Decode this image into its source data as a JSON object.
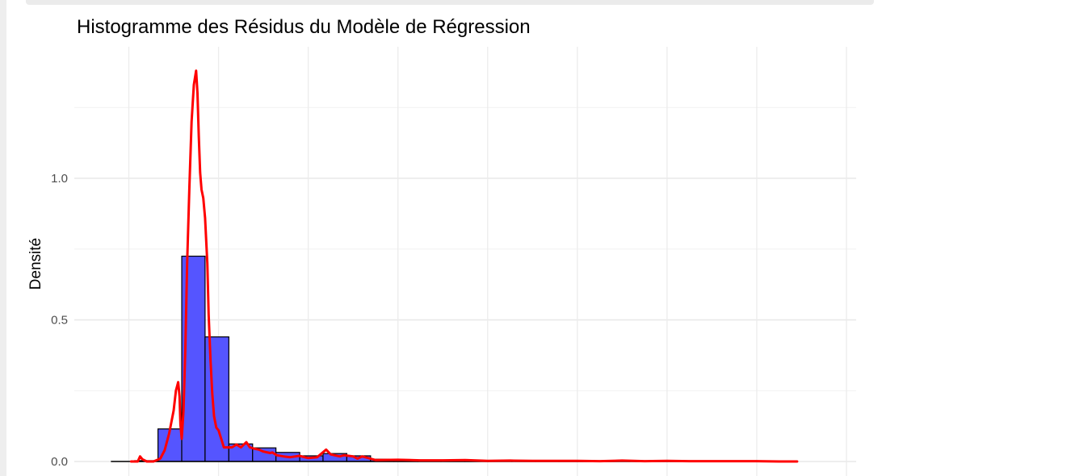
{
  "chart_data": {
    "type": "bar",
    "title": "Histogramme des Résidus du Modèle de Régression",
    "xlabel": "",
    "ylabel": "Densité",
    "ylim": [
      0,
      1.38
    ],
    "xlim": [
      -0.08,
      1.52
    ],
    "grid": true,
    "y_ticks": [
      {
        "value": 0.0,
        "label": "0.0"
      },
      {
        "value": 0.5,
        "label": "0.5"
      },
      {
        "value": 1.0,
        "label": "1.0"
      }
    ],
    "x_gridlines": [
      0.0,
      0.2,
      0.4,
      0.6,
      0.8,
      1.0,
      1.2,
      1.4,
      1.6
    ],
    "histogram": {
      "bin_width": 0.0526,
      "fill_color": "#5555ff",
      "stroke_color": "#000000",
      "bins": [
        {
          "x0": -0.04,
          "x1": 0.013,
          "density": 0.0
        },
        {
          "x0": 0.013,
          "x1": 0.065,
          "density": 0.003
        },
        {
          "x0": 0.065,
          "x1": 0.118,
          "density": 0.115
        },
        {
          "x0": 0.118,
          "x1": 0.17,
          "density": 0.725
        },
        {
          "x0": 0.17,
          "x1": 0.223,
          "density": 0.44
        },
        {
          "x0": 0.223,
          "x1": 0.276,
          "density": 0.062
        },
        {
          "x0": 0.276,
          "x1": 0.328,
          "density": 0.048
        },
        {
          "x0": 0.328,
          "x1": 0.381,
          "density": 0.032
        },
        {
          "x0": 0.381,
          "x1": 0.433,
          "density": 0.02
        },
        {
          "x0": 0.433,
          "x1": 0.486,
          "density": 0.028
        },
        {
          "x0": 0.486,
          "x1": 0.539,
          "density": 0.02
        },
        {
          "x0": 0.539,
          "x1": 0.591,
          "density": 0.008
        },
        {
          "x0": 0.591,
          "x1": 0.644,
          "density": 0.004
        },
        {
          "x0": 0.644,
          "x1": 0.696,
          "density": 0.004
        },
        {
          "x0": 0.696,
          "x1": 0.749,
          "density": 0.003
        },
        {
          "x0": 0.749,
          "x1": 0.802,
          "density": 0.002
        },
        {
          "x0": 0.802,
          "x1": 0.854,
          "density": 0.001
        },
        {
          "x0": 0.854,
          "x1": 0.907,
          "density": 0.001
        },
        {
          "x0": 0.907,
          "x1": 0.959,
          "density": 0.001
        },
        {
          "x0": 0.959,
          "x1": 1.012,
          "density": 0.001
        },
        {
          "x0": 1.012,
          "x1": 1.065,
          "density": 0.001
        },
        {
          "x0": 1.065,
          "x1": 1.117,
          "density": 0.001
        },
        {
          "x0": 1.117,
          "x1": 1.17,
          "density": 0.0
        },
        {
          "x0": 1.17,
          "x1": 1.222,
          "density": 0.0
        },
        {
          "x0": 1.222,
          "x1": 1.275,
          "density": 0.001
        },
        {
          "x0": 1.275,
          "x1": 1.328,
          "density": 0.0
        },
        {
          "x0": 1.328,
          "x1": 1.38,
          "density": 0.0
        },
        {
          "x0": 1.38,
          "x1": 1.433,
          "density": 0.0
        },
        {
          "x0": 1.433,
          "x1": 1.486,
          "density": 0.0
        }
      ]
    },
    "density_curve": {
      "color": "#ff0000",
      "x": [
        0.005,
        0.02,
        0.025,
        0.03,
        0.04,
        0.055,
        0.07,
        0.08,
        0.09,
        0.1,
        0.105,
        0.11,
        0.113,
        0.115,
        0.118,
        0.122,
        0.126,
        0.13,
        0.135,
        0.14,
        0.145,
        0.15,
        0.153,
        0.156,
        0.159,
        0.162,
        0.166,
        0.17,
        0.175,
        0.178,
        0.182,
        0.186,
        0.19,
        0.195,
        0.2,
        0.206,
        0.212,
        0.22,
        0.23,
        0.24,
        0.25,
        0.262,
        0.27,
        0.28,
        0.29,
        0.3,
        0.315,
        0.32,
        0.33,
        0.345,
        0.36,
        0.38,
        0.4,
        0.42,
        0.44,
        0.45,
        0.47,
        0.48,
        0.5,
        0.51,
        0.52,
        0.55,
        0.6,
        0.65,
        0.7,
        0.75,
        0.8,
        0.85,
        0.9,
        0.95,
        1.0,
        1.05,
        1.1,
        1.15,
        1.2,
        1.25,
        1.3,
        1.35,
        1.4,
        1.45,
        1.49
      ],
      "y": [
        0.0,
        0.0,
        0.018,
        0.008,
        0.0,
        0.0,
        0.01,
        0.04,
        0.1,
        0.18,
        0.25,
        0.28,
        0.23,
        0.13,
        0.08,
        0.18,
        0.4,
        0.7,
        0.97,
        1.2,
        1.33,
        1.38,
        1.3,
        1.15,
        1.02,
        0.96,
        0.93,
        0.86,
        0.7,
        0.52,
        0.36,
        0.24,
        0.16,
        0.12,
        0.11,
        0.08,
        0.05,
        0.05,
        0.05,
        0.06,
        0.05,
        0.068,
        0.05,
        0.045,
        0.042,
        0.035,
        0.03,
        0.032,
        0.022,
        0.018,
        0.015,
        0.02,
        0.012,
        0.015,
        0.042,
        0.025,
        0.018,
        0.022,
        0.018,
        0.01,
        0.018,
        0.005,
        0.006,
        0.004,
        0.004,
        0.005,
        0.002,
        0.003,
        0.002,
        0.002,
        0.002,
        0.001,
        0.003,
        0.001,
        0.002,
        0.001,
        0.001,
        0.001,
        0.001,
        0.0,
        0.0
      ]
    }
  }
}
